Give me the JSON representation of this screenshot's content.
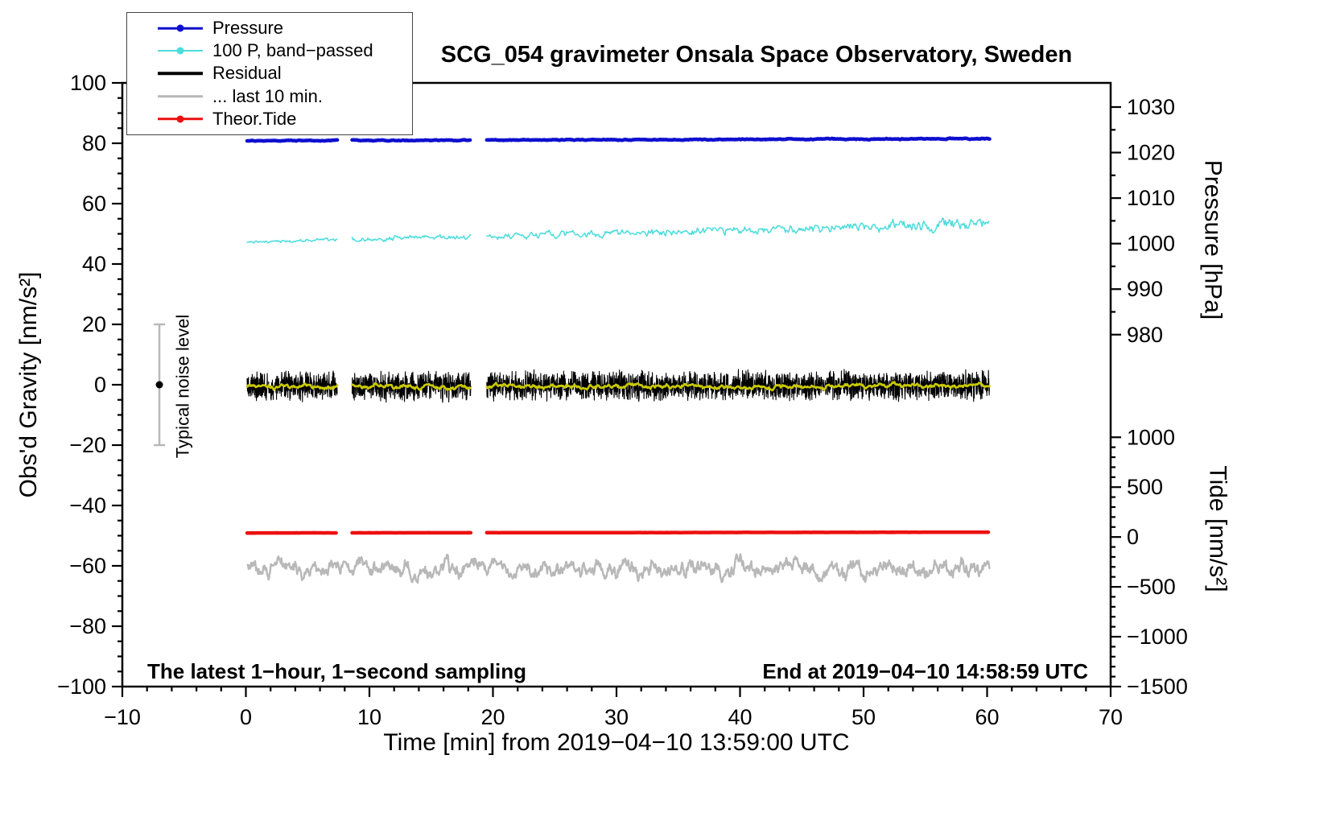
{
  "title": "SCG_054 gravimeter Onsala Space Observatory, Sweden",
  "annotations": {
    "sampling": "The latest 1−hour, 1−second sampling",
    "end_time": "End at 2019−04−10 14:58:59 UTC",
    "noise_label": "Typical noise level"
  },
  "legend": {
    "items": [
      {
        "label": "Pressure",
        "color": "#0f0fcf",
        "dot": true,
        "lw": 2.5
      },
      {
        "label": "100 P, band−passed",
        "color": "#4cdcdc",
        "dot": true,
        "lw": 2
      },
      {
        "label": "Residual",
        "color": "#000000",
        "dot": false,
        "lw": 3.5
      },
      {
        "label": "... last 10 min.",
        "color": "#b8b8b8",
        "dot": false,
        "lw": 3.5
      },
      {
        "label": "Theor.Tide",
        "color": "#ec1010",
        "dot": true,
        "lw": 3.5
      }
    ]
  },
  "chart_data": {
    "type": "line",
    "title": "SCG_054 gravimeter Onsala Space Observatory, Sweden",
    "grid": false,
    "legend_position": "top-left",
    "axes": {
      "x": {
        "label": "Time [min] from 2019−04−10 13:59:00 UTC",
        "min": -10,
        "max": 70,
        "major": 10,
        "minor": 2
      },
      "y_left": {
        "label": "Obs'd Gravity [nm/s²]",
        "min": -100,
        "max": 100,
        "major": 20,
        "minor": 5
      },
      "y_pressure": {
        "label": "Pressure [hPa]",
        "val_a": 1030,
        "frac_a": 0.04,
        "val_b": 980,
        "frac_b": 0.417,
        "tick_min": 980,
        "tick_max": 1030,
        "major": 10,
        "minor": 5,
        "ticks": [
          1030,
          1020,
          1010,
          1000,
          990,
          980
        ]
      },
      "y_tide": {
        "label": "Tide [nm/s²]",
        "val_a": 1000,
        "frac_a": 0.587,
        "val_b": -1500,
        "frac_b": 1.0,
        "tick_min": -1500,
        "tick_max": 1000,
        "major": 500,
        "minor": 100,
        "ticks": [
          1000,
          500,
          0,
          -500,
          -1000,
          -1500
        ]
      }
    },
    "noise_bar": {
      "x": -7,
      "y_low": -20,
      "y_high": 20,
      "dot_y": 0,
      "color": "#b8b8b8"
    },
    "series": [
      {
        "name": "residual_last10min",
        "label": "... last 10 min.",
        "color": "#b8b8b8",
        "width": 2.4,
        "base": -60.5,
        "slope": -0.01,
        "amp0": 2.0,
        "amp1": 2.3,
        "smooth": 0.85,
        "dt": 0.04,
        "seed": 11,
        "segments": [
          [
            0.15,
            60.2
          ]
        ]
      },
      {
        "name": "pressure_bandpassed",
        "label": "100 P, band−passed",
        "color": "#4cdcdc",
        "width": 1.5,
        "base": 47.3,
        "slope": 0.1,
        "amp0": 0.5,
        "amp1": 2.0,
        "smooth": 0.6,
        "dt": 0.08,
        "seed": 23,
        "segments": [
          [
            0.1,
            7.4
          ],
          [
            8.6,
            18.2
          ],
          [
            19.5,
            60.2
          ]
        ]
      },
      {
        "name": "pressure",
        "label": "Pressure",
        "color": "#0f0fcf",
        "width": 4.5,
        "base": 80.8,
        "slope": 0.012,
        "amp0": 0.1,
        "amp1": 0.14,
        "smooth": 0.8,
        "dt": 0.05,
        "seed": 7,
        "segments": [
          [
            0.1,
            7.4
          ],
          [
            8.6,
            18.2
          ],
          [
            19.5,
            60.2
          ]
        ]
      },
      {
        "name": "theoretical_tide",
        "label": "Theor.Tide",
        "color": "#ec1010",
        "width": 4.5,
        "base": -49.1,
        "slope": 0.004,
        "amp0": 0.02,
        "amp1": 0.02,
        "smooth": 0.5,
        "dt": 0.2,
        "seed": 4,
        "segments": [
          [
            0.1,
            7.4
          ],
          [
            8.6,
            18.2
          ],
          [
            19.5,
            60.2
          ]
        ]
      },
      {
        "name": "residual",
        "label": "Residual",
        "color": "#000000",
        "width": 1.1,
        "base": -0.5,
        "slope": 0.002,
        "amp0": 5.5,
        "amp1": 5.5,
        "smooth": 0.05,
        "dt": 0.016,
        "seed": 42,
        "segments": [
          [
            0.1,
            7.4
          ],
          [
            8.6,
            18.2
          ],
          [
            19.5,
            60.2
          ]
        ]
      },
      {
        "name": "residual_smoothed",
        "label": "",
        "color": "#c9c900",
        "width": 2.6,
        "base": -0.6,
        "slope": 0.002,
        "amp0": 0.55,
        "amp1": 0.55,
        "smooth": 0.85,
        "dt": 0.05,
        "seed": 6,
        "segments": [
          [
            0.1,
            7.4
          ],
          [
            8.6,
            18.2
          ],
          [
            19.5,
            60.2
          ]
        ]
      }
    ]
  }
}
